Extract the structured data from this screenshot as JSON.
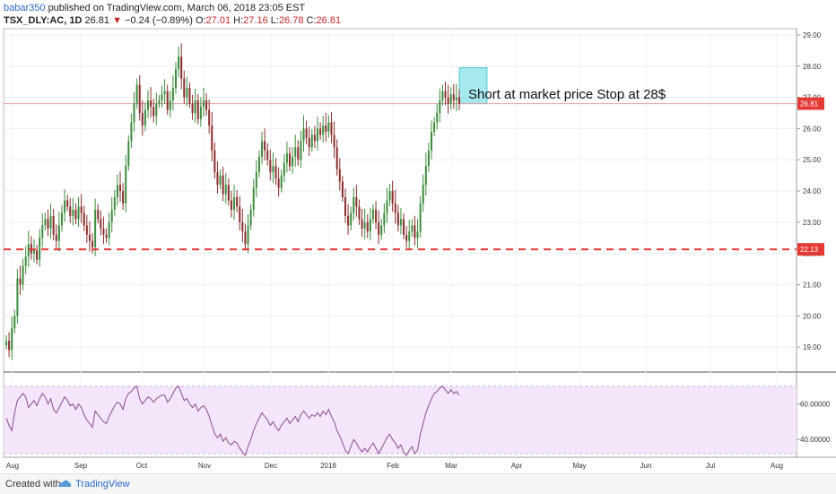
{
  "header": {
    "author": "babar350",
    "published_text": "published on TradingView.com, March 06, 2018 23:05 EST",
    "symbol": "TSX_DLY:AC, 1D",
    "last": "26.81",
    "change": "−0.24 (−0.89%)",
    "open_label": "O:",
    "open": "27.01",
    "high_label": "H:",
    "high": "27.16",
    "low_label": "L:",
    "low": "26.78",
    "close_label": "C:",
    "close": "26.81"
  },
  "footer": {
    "created_with": "Created with",
    "brand": "TradingView"
  },
  "colors": {
    "up": "#3e8c3e",
    "down": "#8b2e2e",
    "support": "#e53935",
    "box": "#7fe0e8",
    "rsi_line": "#8e4a8e",
    "rsi_band": "#f3e6fa"
  },
  "chart_data": [
    {
      "type": "candlestick",
      "title": "",
      "x_ticks": [
        "Aug",
        "Sep",
        "Oct",
        "Nov",
        "Dec",
        "2018",
        "Feb",
        "Mar",
        "Apr",
        "May",
        "Jun",
        "Jul",
        "Aug"
      ],
      "y_ticks": [
        "19.00",
        "20.00",
        "21.00",
        "22.00",
        "23.00",
        "24.00",
        "25.00",
        "26.00",
        "27.00",
        "28.00",
        "29.00"
      ],
      "ylim": [
        18.2,
        29.2
      ],
      "last_price_label": "26.81",
      "support_level": 22.13,
      "support_label": "22.13",
      "annotation": "Short at market price Stop at 28$",
      "highlight_box": {
        "from_index": 164,
        "to_index": 172,
        "low": 26.8,
        "high": 27.95
      },
      "grid": true,
      "close": [
        19.2,
        18.9,
        19.6,
        20.0,
        21.2,
        21.0,
        21.6,
        21.9,
        22.3,
        22.0,
        22.1,
        21.8,
        22.5,
        22.9,
        23.1,
        22.8,
        23.2,
        22.6,
        22.4,
        22.9,
        23.3,
        23.7,
        23.5,
        23.2,
        23.4,
        23.1,
        23.5,
        23.3,
        22.9,
        22.6,
        22.4,
        22.2,
        23.4,
        23.1,
        22.8,
        22.6,
        22.5,
        23.0,
        23.4,
        23.8,
        24.2,
        24.0,
        23.6,
        24.8,
        25.6,
        26.2,
        26.8,
        27.4,
        26.5,
        26.1,
        26.6,
        26.9,
        26.7,
        26.4,
        26.8,
        26.9,
        27.1,
        27.2,
        26.6,
        26.9,
        27.3,
        27.9,
        28.3,
        27.6,
        27.0,
        27.3,
        26.8,
        26.5,
        26.9,
        26.3,
        26.7,
        26.9,
        26.6,
        26.1,
        25.3,
        24.6,
        24.2,
        24.5,
        23.9,
        24.2,
        23.7,
        23.4,
        23.8,
        23.5,
        23.0,
        22.7,
        22.3,
        22.9,
        23.4,
        24.1,
        24.6,
        25.1,
        25.6,
        25.3,
        25.0,
        24.6,
        24.8,
        24.4,
        24.1,
        24.5,
        24.9,
        25.2,
        24.8,
        25.1,
        25.4,
        25.0,
        25.6,
        26.0,
        25.7,
        25.4,
        25.8,
        25.6,
        26.0,
        25.8,
        26.1,
        25.9,
        26.2,
        25.8,
        25.4,
        24.7,
        24.3,
        23.8,
        23.2,
        22.9,
        23.3,
        23.8,
        23.5,
        23.1,
        22.8,
        23.0,
        22.7,
        23.1,
        23.4,
        23.0,
        22.6,
        22.9,
        23.3,
        23.7,
        24.0,
        23.6,
        23.3,
        22.9,
        23.1,
        22.6,
        22.4,
        22.7,
        22.9,
        22.5,
        22.7,
        23.6,
        24.2,
        24.8,
        25.3,
        25.9,
        26.2,
        26.5,
        26.9,
        27.2,
        27.0,
        26.8,
        27.1,
        26.9,
        27.0,
        26.8
      ]
    },
    {
      "type": "line",
      "title": "",
      "y_ticks": [
        "40.00000",
        "60.00000"
      ],
      "ylim": [
        30,
        78
      ],
      "band": [
        32,
        70
      ],
      "values": [
        52,
        48,
        45,
        55,
        62,
        64,
        66,
        64,
        58,
        60,
        62,
        59,
        63,
        66,
        64,
        60,
        63,
        57,
        55,
        58,
        61,
        64,
        62,
        59,
        60,
        57,
        60,
        58,
        54,
        51,
        49,
        47,
        56,
        54,
        52,
        50,
        49,
        53,
        56,
        59,
        61,
        60,
        57,
        63,
        66,
        67,
        69,
        70,
        63,
        60,
        62,
        64,
        63,
        61,
        63,
        64,
        65,
        65,
        61,
        63,
        66,
        69,
        70,
        66,
        62,
        63,
        60,
        58,
        60,
        56,
        58,
        59,
        57,
        53,
        48,
        43,
        41,
        43,
        39,
        41,
        38,
        37,
        39,
        38,
        35,
        33,
        31,
        36,
        40,
        45,
        49,
        52,
        55,
        53,
        51,
        48,
        50,
        47,
        45,
        48,
        50,
        52,
        49,
        51,
        53,
        50,
        54,
        56,
        54,
        52,
        54,
        53,
        55,
        53,
        56,
        54,
        57,
        53,
        50,
        45,
        42,
        38,
        34,
        32,
        36,
        40,
        38,
        35,
        33,
        35,
        33,
        36,
        38,
        35,
        32,
        35,
        38,
        41,
        43,
        40,
        38,
        35,
        37,
        33,
        31,
        34,
        36,
        32,
        34,
        43,
        49,
        55,
        59,
        63,
        66,
        67,
        69,
        70,
        68,
        66,
        68,
        66,
        67,
        65
      ]
    }
  ]
}
